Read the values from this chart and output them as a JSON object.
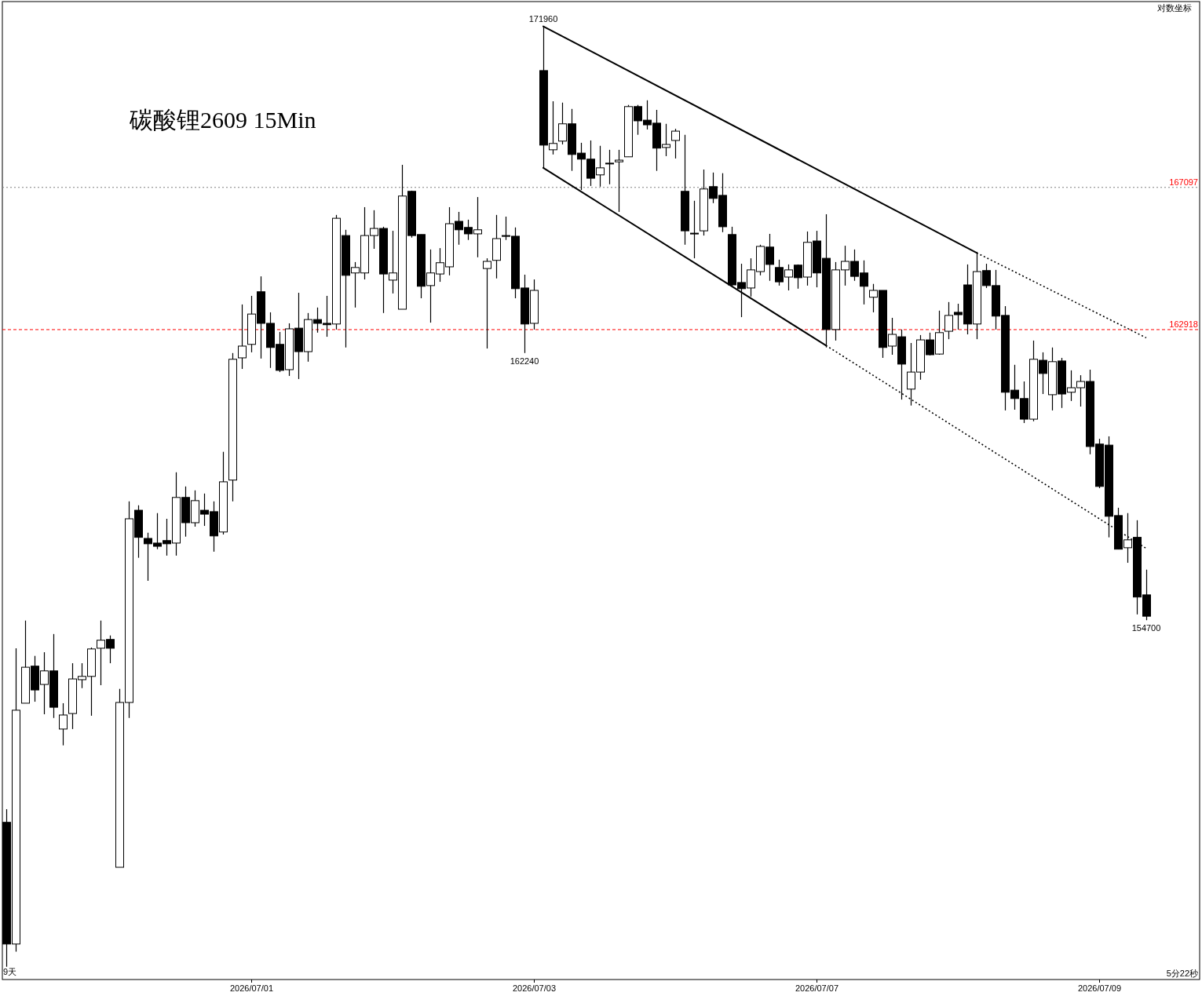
{
  "chart_data": {
    "type": "candlestick",
    "title": "碳酸锂2609 15Min",
    "log": true,
    "tick_labels": "x",
    "ylim": [
      145110,
      172720
    ],
    "categories": [
      null,
      null,
      null,
      null,
      null,
      null,
      null,
      null,
      null,
      null,
      null,
      null,
      null,
      null,
      null,
      null,
      null,
      null,
      null,
      null,
      null,
      null,
      null,
      null,
      null,
      null,
      "2026/07/01",
      null,
      null,
      null,
      null,
      null,
      null,
      null,
      null,
      null,
      null,
      null,
      null,
      null,
      null,
      null,
      null,
      null,
      null,
      null,
      null,
      null,
      null,
      null,
      null,
      null,
      null,
      null,
      null,
      null,
      "2026/07/03",
      null,
      null,
      null,
      null,
      null,
      null,
      null,
      null,
      null,
      null,
      null,
      null,
      null,
      null,
      null,
      null,
      null,
      null,
      null,
      null,
      null,
      null,
      null,
      null,
      null,
      null,
      null,
      null,
      null,
      "2026/07/07",
      null,
      null,
      null,
      null,
      null,
      null,
      null,
      null,
      null,
      null,
      null,
      null,
      null,
      null,
      null,
      null,
      null,
      null,
      null,
      null,
      null,
      null,
      null,
      null,
      null,
      null,
      null,
      null,
      null,
      "2026/07/09",
      null,
      null,
      null,
      null,
      null
    ],
    "ohlc": [
      [
        149230,
        149580,
        145440,
        146030
      ],
      [
        146030,
        153930,
        145830,
        152240
      ],
      [
        152430,
        154690,
        152430,
        153410
      ],
      [
        153440,
        153720,
        152470,
        152790
      ],
      [
        152940,
        153820,
        152130,
        153310
      ],
      [
        153310,
        154320,
        152030,
        152320
      ],
      [
        151730,
        152430,
        151290,
        152110
      ],
      [
        152150,
        153520,
        151730,
        153090
      ],
      [
        153070,
        153520,
        152840,
        153160
      ],
      [
        153160,
        153950,
        152090,
        153910
      ],
      [
        153930,
        154690,
        152920,
        154150
      ],
      [
        154170,
        154280,
        153520,
        153930
      ],
      [
        148040,
        152820,
        148040,
        152450
      ],
      [
        152450,
        158010,
        152030,
        157520
      ],
      [
        157760,
        157900,
        156430,
        157000
      ],
      [
        156970,
        157130,
        155790,
        156820
      ],
      [
        156840,
        157680,
        156670,
        156750
      ],
      [
        156910,
        157520,
        156490,
        156820
      ],
      [
        156840,
        158830,
        156490,
        158120
      ],
      [
        158120,
        158430,
        157020,
        157410
      ],
      [
        157410,
        158320,
        157300,
        158030
      ],
      [
        157760,
        158230,
        157320,
        157650
      ],
      [
        157720,
        158010,
        156600,
        157040
      ],
      [
        157150,
        159410,
        157080,
        158560
      ],
      [
        158610,
        162240,
        158010,
        162060
      ],
      [
        162100,
        163650,
        161780,
        162440
      ],
      [
        162490,
        163900,
        162260,
        163370
      ],
      [
        164020,
        164470,
        162080,
        163100
      ],
      [
        163100,
        163420,
        161810,
        162400
      ],
      [
        162490,
        162850,
        161690,
        161740
      ],
      [
        161760,
        163100,
        161580,
        162940
      ],
      [
        162960,
        163990,
        161490,
        162280
      ],
      [
        162280,
        163400,
        161990,
        163210
      ],
      [
        163210,
        163560,
        162830,
        163100
      ],
      [
        163100,
        163900,
        162710,
        163060
      ],
      [
        163080,
        166280,
        162920,
        166180
      ],
      [
        165670,
        165840,
        162400,
        164500
      ],
      [
        164570,
        164890,
        163560,
        164730
      ],
      [
        164570,
        166510,
        164380,
        165670
      ],
      [
        165670,
        166420,
        165280,
        165880
      ],
      [
        165880,
        165930,
        163400,
        164540
      ],
      [
        164360,
        165810,
        163970,
        164570
      ],
      [
        163510,
        167770,
        163510,
        166840
      ],
      [
        166980,
        167000,
        165610,
        165670
      ],
      [
        165700,
        165700,
        163830,
        164180
      ],
      [
        164200,
        165260,
        163120,
        164570
      ],
      [
        164540,
        165300,
        164310,
        164870
      ],
      [
        164750,
        166510,
        164500,
        166020
      ],
      [
        166090,
        166370,
        165400,
        165840
      ],
      [
        165910,
        166140,
        165540,
        165720
      ],
      [
        165720,
        166810,
        165030,
        165840
      ],
      [
        164700,
        165000,
        162370,
        164910
      ],
      [
        164940,
        166280,
        164410,
        165580
      ],
      [
        165670,
        166230,
        165540,
        165650
      ],
      [
        165650,
        165910,
        163830,
        164110
      ],
      [
        164130,
        164520,
        162240,
        163080
      ],
      [
        163100,
        164380,
        162920,
        164060
      ],
      [
        170610,
        171960,
        167680,
        168360
      ],
      [
        168220,
        169680,
        168080,
        168410
      ],
      [
        168480,
        169640,
        168380,
        169000
      ],
      [
        169000,
        169450,
        167590,
        168080
      ],
      [
        168120,
        168430,
        167020,
        167940
      ],
      [
        167940,
        168500,
        167140,
        167370
      ],
      [
        167470,
        168340,
        167120,
        167680
      ],
      [
        167800,
        168220,
        167190,
        167820
      ],
      [
        167860,
        168220,
        166370,
        167910
      ],
      [
        168010,
        169570,
        168010,
        169520
      ],
      [
        169520,
        169570,
        168670,
        169090
      ],
      [
        169110,
        169710,
        168830,
        168970
      ],
      [
        169020,
        169420,
        167590,
        168270
      ],
      [
        168290,
        169000,
        168030,
        168380
      ],
      [
        168500,
        168850,
        167960,
        168780
      ],
      [
        166980,
        168670,
        165400,
        165810
      ],
      [
        165740,
        166700,
        165000,
        165720
      ],
      [
        165810,
        167630,
        165670,
        167050
      ],
      [
        167120,
        167540,
        166630,
        166770
      ],
      [
        166860,
        167520,
        165770,
        165930
      ],
      [
        165700,
        165930,
        164180,
        164220
      ],
      [
        164290,
        164840,
        163280,
        164110
      ],
      [
        164130,
        165000,
        163880,
        164660
      ],
      [
        164610,
        165400,
        164500,
        165350
      ],
      [
        165330,
        165720,
        164340,
        164820
      ],
      [
        164730,
        164960,
        164200,
        164310
      ],
      [
        164450,
        164820,
        164060,
        164660
      ],
      [
        164800,
        164820,
        164110,
        164430
      ],
      [
        164450,
        165790,
        164200,
        165470
      ],
      [
        165510,
        165810,
        164150,
        164570
      ],
      [
        165000,
        166300,
        162400,
        162920
      ],
      [
        162920,
        164890,
        162600,
        164660
      ],
      [
        164660,
        165370,
        164200,
        164910
      ],
      [
        164910,
        165260,
        164340,
        164470
      ],
      [
        164570,
        164940,
        163650,
        164180
      ],
      [
        163860,
        164250,
        163420,
        164060
      ],
      [
        164060,
        164060,
        162100,
        162400
      ],
      [
        162440,
        163260,
        162190,
        162780
      ],
      [
        162710,
        162920,
        160900,
        161920
      ],
      [
        161200,
        162530,
        160730,
        161690
      ],
      [
        161690,
        162760,
        161470,
        162620
      ],
      [
        162620,
        162830,
        162170,
        162190
      ],
      [
        162210,
        163470,
        162190,
        162830
      ],
      [
        162870,
        163720,
        162640,
        163330
      ],
      [
        163420,
        163670,
        162920,
        163350
      ],
      [
        164220,
        164820,
        162780,
        163080
      ],
      [
        163080,
        165190,
        162640,
        164610
      ],
      [
        164640,
        164840,
        164130,
        164200
      ],
      [
        164200,
        164660,
        162920,
        163310
      ],
      [
        163330,
        163600,
        160590,
        161110
      ],
      [
        161170,
        161900,
        160610,
        160930
      ],
      [
        160930,
        161420,
        160230,
        160340
      ],
      [
        160340,
        162600,
        160280,
        162060
      ],
      [
        162030,
        162260,
        161060,
        161650
      ],
      [
        161040,
        162400,
        160590,
        161990
      ],
      [
        162010,
        162100,
        160660,
        161060
      ],
      [
        161110,
        161740,
        160860,
        161240
      ],
      [
        161240,
        161600,
        160700,
        161420
      ],
      [
        161420,
        161760,
        159340,
        159560
      ],
      [
        159630,
        159780,
        158380,
        158430
      ],
      [
        159600,
        159850,
        157000,
        157590
      ],
      [
        157610,
        157830,
        156670,
        156670
      ],
      [
        156710,
        157680,
        156290,
        156930
      ],
      [
        157000,
        157480,
        154860,
        155340
      ],
      [
        155400,
        156100,
        154700,
        154810
      ]
    ],
    "series": [
      {
        "type": "line",
        "color": "#000000",
        "line_style": "solid",
        "values": [
          null,
          null,
          null,
          null,
          null,
          null,
          null,
          null,
          null,
          null,
          null,
          null,
          null,
          null,
          null,
          null,
          null,
          null,
          null,
          null,
          null,
          null,
          null,
          null,
          null,
          null,
          null,
          null,
          null,
          null,
          null,
          null,
          null,
          null,
          null,
          null,
          null,
          null,
          null,
          null,
          null,
          null,
          null,
          null,
          null,
          null,
          null,
          null,
          null,
          null,
          null,
          null,
          null,
          null,
          null,
          null,
          null,
          171960,
          null,
          null,
          null,
          null,
          null,
          null,
          null,
          null,
          null,
          null,
          null,
          null,
          null,
          null,
          null,
          null,
          null,
          null,
          null,
          null,
          null,
          null,
          null,
          null,
          null,
          null,
          null,
          null,
          null,
          null,
          null,
          null,
          null,
          null,
          null,
          null,
          null,
          null,
          null,
          null,
          null,
          null,
          null,
          null,
          null,
          165160,
          null,
          null,
          null,
          null,
          null,
          null,
          null,
          null,
          null,
          null,
          null,
          null,
          null,
          null,
          null,
          null,
          null,
          null
        ]
      },
      {
        "type": "line",
        "color": "#000000",
        "line_style": "dotted",
        "values": [
          null,
          null,
          null,
          null,
          null,
          null,
          null,
          null,
          null,
          null,
          null,
          null,
          null,
          null,
          null,
          null,
          null,
          null,
          null,
          null,
          null,
          null,
          null,
          null,
          null,
          null,
          null,
          null,
          null,
          null,
          null,
          null,
          null,
          null,
          null,
          null,
          null,
          null,
          null,
          null,
          null,
          null,
          null,
          null,
          null,
          null,
          null,
          null,
          null,
          null,
          null,
          null,
          null,
          null,
          null,
          null,
          null,
          null,
          null,
          null,
          null,
          null,
          null,
          null,
          null,
          null,
          null,
          null,
          null,
          null,
          null,
          null,
          null,
          null,
          null,
          null,
          null,
          null,
          null,
          null,
          null,
          null,
          null,
          null,
          null,
          null,
          null,
          null,
          null,
          null,
          null,
          null,
          null,
          null,
          null,
          null,
          null,
          null,
          null,
          null,
          null,
          null,
          null,
          165160,
          null,
          null,
          null,
          null,
          null,
          null,
          null,
          null,
          null,
          null,
          null,
          null,
          null,
          null,
          null,
          null,
          null,
          162680
        ]
      },
      {
        "type": "line",
        "color": "#000000",
        "line_style": "solid",
        "values": [
          null,
          null,
          null,
          null,
          null,
          null,
          null,
          null,
          null,
          null,
          null,
          null,
          null,
          null,
          null,
          null,
          null,
          null,
          null,
          null,
          null,
          null,
          null,
          null,
          null,
          null,
          null,
          null,
          null,
          null,
          null,
          null,
          null,
          null,
          null,
          null,
          null,
          null,
          null,
          null,
          null,
          null,
          null,
          null,
          null,
          null,
          null,
          null,
          null,
          null,
          null,
          null,
          null,
          null,
          null,
          null,
          null,
          167680,
          null,
          null,
          null,
          null,
          null,
          null,
          null,
          null,
          null,
          null,
          null,
          null,
          null,
          null,
          null,
          null,
          null,
          null,
          null,
          null,
          null,
          null,
          null,
          null,
          null,
          null,
          null,
          null,
          null,
          162460,
          null,
          null,
          null,
          null,
          null,
          null,
          null,
          null,
          null,
          null,
          null,
          null,
          null,
          null,
          null,
          null,
          null,
          null,
          null,
          null,
          null,
          null,
          null,
          null,
          null,
          null,
          null,
          null,
          null,
          null,
          null,
          null,
          null,
          null
        ]
      },
      {
        "type": "line",
        "color": "#000000",
        "line_style": "dotted",
        "values": [
          null,
          null,
          null,
          null,
          null,
          null,
          null,
          null,
          null,
          null,
          null,
          null,
          null,
          null,
          null,
          null,
          null,
          null,
          null,
          null,
          null,
          null,
          null,
          null,
          null,
          null,
          null,
          null,
          null,
          null,
          null,
          null,
          null,
          null,
          null,
          null,
          null,
          null,
          null,
          null,
          null,
          null,
          null,
          null,
          null,
          null,
          null,
          null,
          null,
          null,
          null,
          null,
          null,
          null,
          null,
          null,
          null,
          null,
          null,
          null,
          null,
          null,
          null,
          null,
          null,
          null,
          null,
          null,
          null,
          null,
          null,
          null,
          null,
          null,
          null,
          null,
          null,
          null,
          null,
          null,
          null,
          null,
          null,
          null,
          null,
          null,
          null,
          162460,
          null,
          null,
          null,
          null,
          null,
          null,
          null,
          null,
          null,
          null,
          null,
          null,
          null,
          null,
          null,
          null,
          null,
          null,
          null,
          null,
          null,
          null,
          null,
          null,
          null,
          null,
          null,
          null,
          null,
          null,
          null,
          null,
          null,
          156690
        ]
      }
    ],
    "ref_lines": [
      {
        "axis": "y",
        "value": 167097,
        "label": "167097",
        "color": "#808080",
        "line_style": "dotted"
      },
      {
        "axis": "y",
        "value": 162918,
        "label": "162918",
        "color": "#ff0000",
        "line_style": "dashed"
      }
    ],
    "annotations": [
      {
        "text": "171960",
        "y": 171960
      },
      {
        "text": "162240",
        "y": 162240
      },
      {
        "text": "154700",
        "y": 154700
      },
      "对数坐标",
      "9天",
      "5分22秒"
    ]
  }
}
